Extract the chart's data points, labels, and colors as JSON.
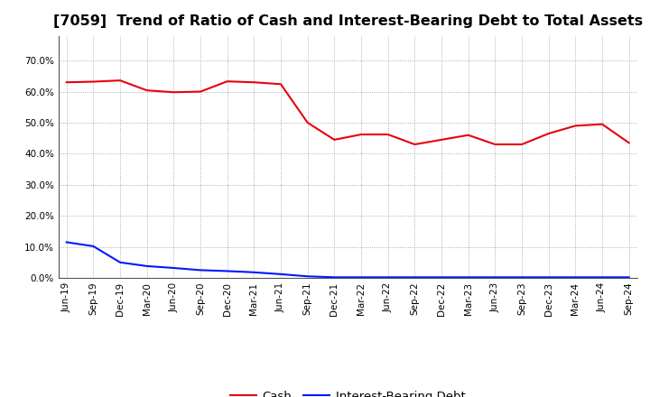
{
  "title": "[7059]  Trend of Ratio of Cash and Interest-Bearing Debt to Total Assets",
  "x_labels": [
    "Jun-19",
    "Sep-19",
    "Dec-19",
    "Mar-20",
    "Jun-20",
    "Sep-20",
    "Dec-20",
    "Mar-21",
    "Jun-21",
    "Sep-21",
    "Dec-21",
    "Mar-22",
    "Jun-22",
    "Sep-22",
    "Dec-22",
    "Mar-23",
    "Jun-23",
    "Sep-23",
    "Dec-23",
    "Mar-24",
    "Jun-24",
    "Sep-24"
  ],
  "cash": [
    0.63,
    0.632,
    0.636,
    0.604,
    0.598,
    0.6,
    0.633,
    0.63,
    0.624,
    0.5,
    0.445,
    0.462,
    0.462,
    0.43,
    0.445,
    0.46,
    0.43,
    0.43,
    0.465,
    0.49,
    0.495,
    0.435
  ],
  "interest_bearing_debt": [
    0.115,
    0.102,
    0.05,
    0.038,
    0.032,
    0.025,
    0.022,
    0.018,
    0.012,
    0.005,
    0.002,
    0.002,
    0.002,
    0.002,
    0.002,
    0.002,
    0.002,
    0.002,
    0.002,
    0.002,
    0.002,
    0.002
  ],
  "cash_color": "#e8000e",
  "debt_color": "#0018ff",
  "ylim": [
    0.0,
    0.78
  ],
  "yticks": [
    0.0,
    0.1,
    0.2,
    0.3,
    0.4,
    0.5,
    0.6,
    0.7
  ],
  "background_color": "#ffffff",
  "plot_bg_color": "#ffffff",
  "grid_color": "#999999",
  "legend_cash": "Cash",
  "legend_debt": "Interest-Bearing Debt",
  "title_fontsize": 11.5,
  "tick_fontsize": 7.5,
  "legend_fontsize": 9.5,
  "line_width": 1.5
}
